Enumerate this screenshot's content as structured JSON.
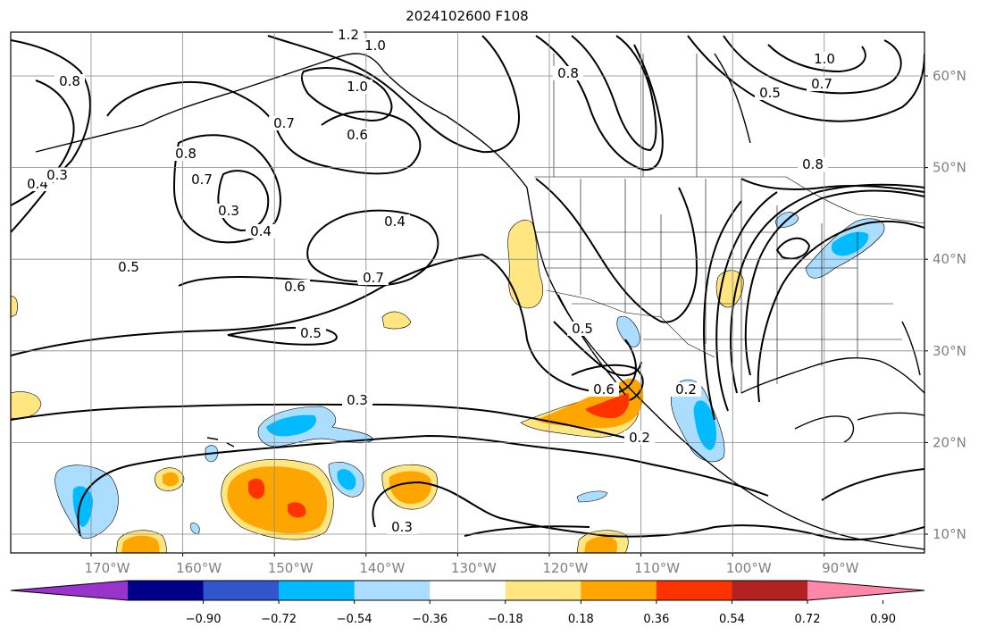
{
  "title": "2024102600 F108",
  "map": {
    "lon_range": [
      -180,
      -80
    ],
    "lat_range": [
      8,
      65
    ],
    "lon_ticks": [
      "170°W",
      "160°W",
      "150°W",
      "140°W",
      "130°W",
      "120°W",
      "110°W",
      "100°W",
      "90°W"
    ],
    "lat_ticks": [
      "10°N",
      "20°N",
      "30°N",
      "40°N",
      "50°N",
      "60°N"
    ],
    "grid": true,
    "contour_color": "#000000",
    "contour_labels": [
      "1.2",
      "1.0",
      "1.0",
      "1.0",
      "0.8",
      "0.8",
      "0.7",
      "0.7",
      "0.6",
      "0.8",
      "0.7",
      "0.4",
      "0.3",
      "0.3",
      "0.4",
      "0.4",
      "0.5",
      "0.6",
      "0.7",
      "0.5",
      "0.5",
      "0.8",
      "0.5",
      "0.3",
      "0.3",
      "0.2",
      "0.2",
      "0.6"
    ]
  },
  "colorbar": {
    "colors": [
      "#9933cc",
      "#000088",
      "#3355cc",
      "#00bbff",
      "#aaddff",
      "#ffffff",
      "#ffe680",
      "#ffa500",
      "#ff3300",
      "#b22222",
      "#ff88aa"
    ],
    "tick_labels": [
      "−0.90",
      "−0.72",
      "−0.54",
      "−0.36",
      "−0.18",
      "0.18",
      "0.36",
      "0.54",
      "0.72",
      "0.90"
    ]
  }
}
